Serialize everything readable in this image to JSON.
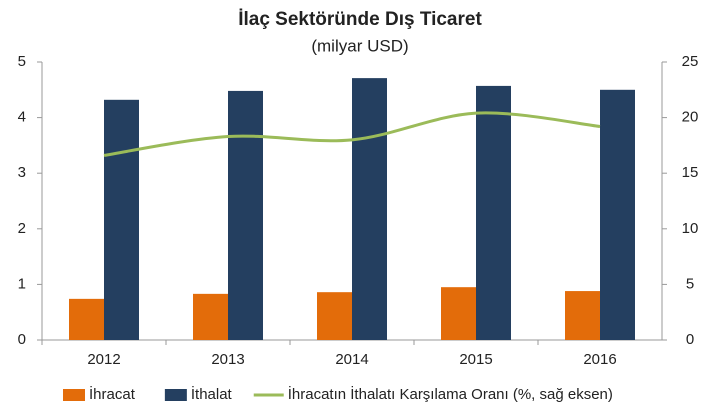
{
  "chart_data": {
    "type": "bar",
    "title": "İlaç Sektöründe Dış Ticaret",
    "subtitle": "(milyar USD)",
    "categories": [
      "2012",
      "2013",
      "2014",
      "2015",
      "2016"
    ],
    "series": [
      {
        "name": "İhracat",
        "color": "#e36c0a",
        "values": [
          0.74,
          0.83,
          0.86,
          0.95,
          0.88
        ]
      },
      {
        "name": "İthalat",
        "color": "#243f60",
        "values": [
          4.32,
          4.48,
          4.71,
          4.57,
          4.5
        ]
      },
      {
        "name": "İhracatın İthalatı Karşılama Oranı (%, sağ eksen)",
        "color": "#9bbb59",
        "type": "line",
        "axis": "y2",
        "values": [
          16.6,
          18.3,
          18.0,
          20.4,
          19.2
        ]
      }
    ],
    "ylim": [
      0,
      5
    ],
    "yticks": [
      0,
      1,
      2,
      3,
      4,
      5
    ],
    "y2lim": [
      0,
      25
    ],
    "y2ticks": [
      0,
      5,
      10,
      15,
      20,
      25
    ],
    "legend": "bottom"
  }
}
